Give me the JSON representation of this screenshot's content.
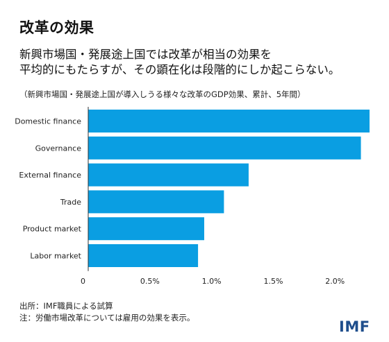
{
  "header": {
    "title": "改革の効果",
    "subtitle_line1": "新興市場国・発展途上国では改革が相当の効果を",
    "subtitle_line2": "平均的にもたらすが、その顕在化は段階的にしか起こらない。",
    "chart_note": "（新興市場国・発展途上国が導入しうる様々な改革のGDP効果、累計、5年間）"
  },
  "footer": {
    "source": "出所：IMF職員による試算",
    "note": "注：労働市場改革については雇用の効果を表示。",
    "logo": "IMF"
  },
  "colors": {
    "bar": "#0a9ee2",
    "axis": "#333333"
  },
  "chart_data": {
    "type": "bar",
    "orientation": "horizontal",
    "categories": [
      "Domestic finance",
      "Governance",
      "External finance",
      "Trade",
      "Product market",
      "Labor market"
    ],
    "values": [
      2.28,
      2.21,
      1.3,
      1.1,
      0.94,
      0.89
    ],
    "unit": "%",
    "xlim": [
      0,
      2.28
    ],
    "xticks": [
      0,
      0.5,
      1.0,
      1.5,
      2.0
    ],
    "xtick_labels": [
      "0",
      "0.5%",
      "1.0%",
      "1.5%",
      "2.0%"
    ],
    "grid": false
  }
}
